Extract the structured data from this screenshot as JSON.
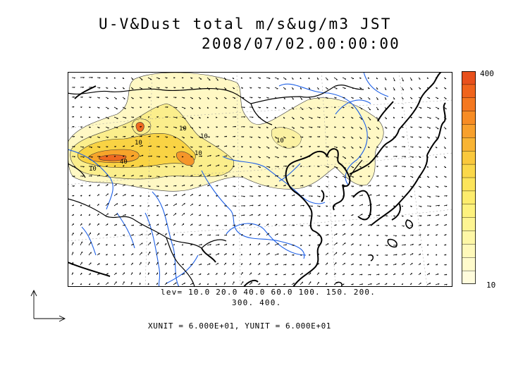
{
  "title": {
    "line1": "U-V&Dust total m/s&ug/m3 JST",
    "line2": "2008/07/02.00:00:00"
  },
  "colorbar": {
    "max_label": "400",
    "min_label": "10",
    "colors": [
      "#e8501c",
      "#f0641c",
      "#f47820",
      "#f78c24",
      "#f8a02c",
      "#f9b434",
      "#fac83c",
      "#fbd84a",
      "#fce45a",
      "#fdec6c",
      "#fef27e",
      "#fef592",
      "#fef7a6",
      "#fff9ba",
      "#fffbcc",
      "#fffcdc"
    ]
  },
  "contour_levels": {
    "line1": "lev= 10.0 20.0 40.0 60.0 100. 150. 200.",
    "line2": "300. 400.",
    "values": [
      10,
      20,
      40,
      60,
      100,
      150,
      200,
      300,
      400
    ]
  },
  "vector_units": {
    "text": "XUNIT = 6.000E+01, YUNIT = 6.000E+01"
  },
  "map": {
    "contour_labels": [
      "10",
      "40",
      "10",
      "10",
      "10",
      "10",
      "10"
    ]
  }
}
